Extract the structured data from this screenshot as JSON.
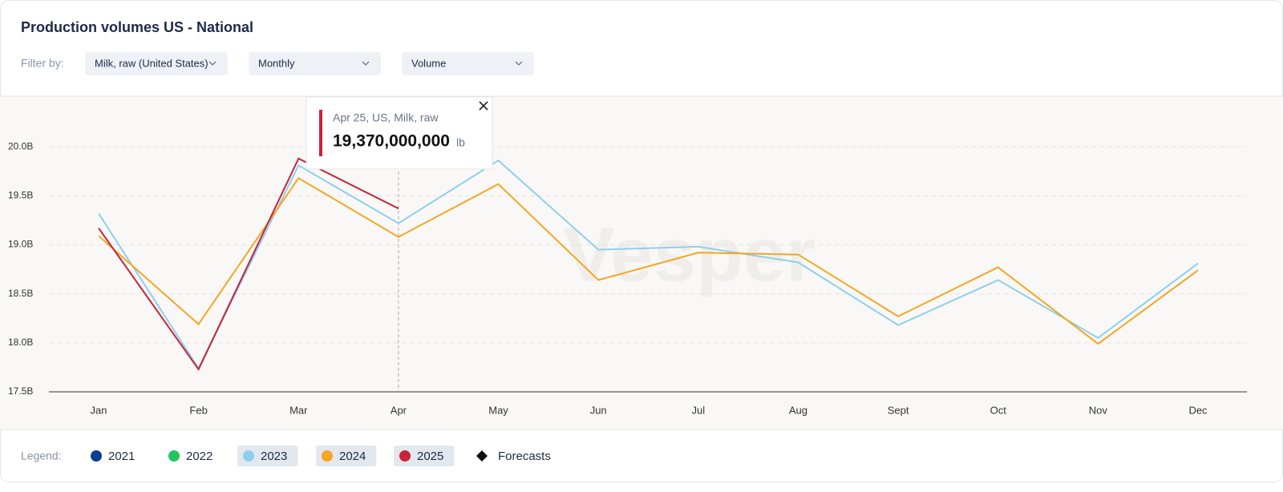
{
  "header": {
    "title": "Production volumes US - National",
    "filter_label": "Filter by:",
    "filters": [
      "Milk, raw (United States)",
      "Monthly",
      "Volume"
    ]
  },
  "chart_data": {
    "type": "line",
    "categories": [
      "Jan",
      "Feb",
      "Mar",
      "Apr",
      "May",
      "Jun",
      "Jul",
      "Aug",
      "Sept",
      "Oct",
      "Nov",
      "Dec"
    ],
    "series": [
      {
        "name": "2021",
        "color": "#0b3d91",
        "highlighted": false,
        "values": [
          null,
          null,
          null,
          null,
          null,
          null,
          null,
          null,
          null,
          null,
          null,
          null
        ]
      },
      {
        "name": "2022",
        "color": "#22c55e",
        "highlighted": false,
        "values": [
          null,
          null,
          null,
          null,
          null,
          null,
          null,
          null,
          null,
          null,
          null,
          null
        ]
      },
      {
        "name": "2023",
        "color": "#8ecfee",
        "highlighted": true,
        "values": [
          19.32,
          17.74,
          19.81,
          19.22,
          19.86,
          18.95,
          18.98,
          18.82,
          18.18,
          18.64,
          18.05,
          18.81
        ]
      },
      {
        "name": "2024",
        "color": "#f5a623",
        "highlighted": true,
        "values": [
          19.09,
          18.19,
          19.68,
          19.08,
          19.62,
          18.64,
          18.92,
          18.9,
          18.27,
          18.77,
          17.99,
          18.74
        ]
      },
      {
        "name": "2025",
        "color": "#c8233a",
        "highlighted": true,
        "values": [
          19.17,
          17.73,
          19.88,
          19.37,
          null,
          null,
          null,
          null,
          null,
          null,
          null,
          null
        ]
      }
    ],
    "ylim": [
      17.5,
      20.5
    ],
    "yticks": [
      {
        "value": 17.5,
        "label": "17.5B"
      },
      {
        "value": 18,
        "label": "18.0B"
      },
      {
        "value": 18.5,
        "label": "18.5B"
      },
      {
        "value": 19,
        "label": "19.0B"
      },
      {
        "value": 19.5,
        "label": "19.5B"
      },
      {
        "value": 20,
        "label": "20.0B"
      }
    ],
    "grid": true,
    "watermark": "Vesper",
    "tooltip": {
      "label": "Apr 25, US, Milk, raw",
      "value": "19,370,000,000",
      "unit": "lb"
    }
  },
  "legend": {
    "label": "Legend:",
    "forecasts": "Forecasts"
  }
}
